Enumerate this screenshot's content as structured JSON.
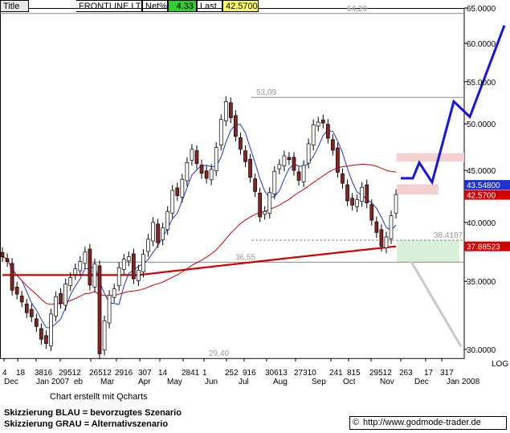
{
  "header": {
    "title_label": "Title",
    "name": "FRONTLINE LTD",
    "net_label": "Net%",
    "net_value": "4.33",
    "last_label": "Last",
    "last_value": "42.5700"
  },
  "colors": {
    "grid": "#aaaaaa",
    "up_candle": "#ffffff",
    "down_candle": "#8b2222",
    "ma_short": "#1e32d2",
    "ma_long": "#d20000",
    "scenario_blue": "#1414e6",
    "scenario_gray": "#c8c8c8",
    "green_box": "#d8f0d8",
    "pink_box": "#f4d0d0",
    "net_bg": "#33cc33",
    "last_bg": "#ffff66"
  },
  "chart_data": {
    "type": "candlestick",
    "yscale": "log",
    "ylim": [
      29.4,
      65.0
    ],
    "y_ticks": [
      "65.0000",
      "60.0000",
      "55.0000",
      "50.0000",
      "45.0000",
      "40.0000",
      "35.0000",
      "30.0000"
    ],
    "y_tick_values": [
      65,
      60,
      55,
      50,
      45,
      40,
      35,
      30
    ],
    "scale_label": "LOG",
    "x_day_labels": [
      "4",
      "18",
      "3816",
      "29512",
      "26512",
      "2916",
      "307",
      "14",
      "2841",
      "1",
      "252",
      "916",
      "30613",
      "27310",
      "241",
      "815",
      "29512",
      "263",
      "17",
      "317"
    ],
    "x_month_labels": [
      "Dec",
      "Jan 2007",
      "eb",
      "Mar",
      "Apr",
      "May",
      "Jun",
      "Jul",
      "Aug",
      "Sep",
      "Oct",
      "Nov",
      "Dec",
      "Jan 2008"
    ],
    "levels": [
      {
        "label": "64,20",
        "value": 64.2
      },
      {
        "label": "53,09",
        "value": 53.09
      },
      {
        "label": "38.4187",
        "value": 38.4187
      },
      {
        "label": "36,55",
        "value": 36.55
      },
      {
        "label": "29,40",
        "value": 29.4
      }
    ],
    "price_flags": [
      {
        "label": "43.54800",
        "value": 43.548,
        "color": "#1e32d2"
      },
      {
        "label": "42.5700",
        "value": 42.57,
        "color": "#d20000"
      },
      {
        "label": "37.88523",
        "value": 37.885,
        "color": "#d20000"
      }
    ],
    "series": [
      {
        "name": "close",
        "values": [
          37.0,
          36.6,
          34.3,
          34.0,
          33.4,
          32.6,
          32.3,
          31.6,
          30.7,
          30.4,
          32.5,
          33.8,
          33.3,
          34.8,
          35.3,
          36.0,
          36.6,
          37.4,
          34.7,
          36.4,
          29.7,
          32.0,
          33.9,
          34.4,
          36.1,
          36.8,
          37.0,
          35.2,
          35.9,
          37.2,
          38.5,
          40.0,
          38.2,
          39.5,
          41.0,
          43.0,
          42.5,
          44.1,
          45.8,
          47.2,
          45.7,
          44.7,
          44.2,
          45.1,
          47.4,
          50.5,
          52.6,
          50.7,
          48.6,
          47.2,
          45.9,
          44.3,
          42.9,
          40.5,
          41.0,
          42.8,
          44.9,
          45.6,
          46.5,
          46.1,
          45.0,
          44.0,
          45.5,
          47.8,
          49.9,
          50.2,
          50.1,
          48.4,
          47.1,
          44.8,
          43.7,
          42.0,
          41.6,
          42.1,
          43.3,
          41.8,
          40.2,
          39.1,
          37.9,
          38.7,
          40.6,
          42.6
        ]
      }
    ],
    "scenarios": [
      {
        "name": "BLAU",
        "values": [
          44.2,
          44.2,
          45.8,
          43.8,
          52.6,
          50.8,
          62.5
        ]
      },
      {
        "name": "GRAU",
        "values": [
          36.6,
          30.2
        ]
      }
    ]
  },
  "notes": {
    "created": "Chart erstellt mit Qcharts",
    "scenario_blue": "Skizzierung BLAU = bevorzugtes Szenario",
    "scenario_gray": "Skizzierung GRAU = Alternativszenario",
    "copyright": "©",
    "url": "http://www.godmode-trader.de"
  }
}
